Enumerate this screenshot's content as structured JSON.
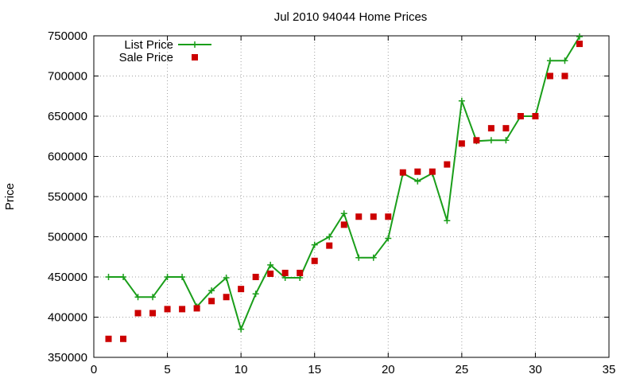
{
  "chart_data": {
    "type": "line",
    "title": "Jul 2010 94044 Home Prices",
    "xlabel": "",
    "ylabel": "Price",
    "xlim": [
      0,
      35
    ],
    "ylim": [
      350000,
      750000
    ],
    "x_ticks": [
      0,
      5,
      10,
      15,
      20,
      25,
      30,
      35
    ],
    "y_ticks": [
      350000,
      400000,
      450000,
      500000,
      550000,
      600000,
      650000,
      700000,
      750000
    ],
    "grid": true,
    "legend_position": "top-left",
    "series": [
      {
        "name": "List Price",
        "style": "line+cross",
        "color": "#1a9e1a",
        "points": [
          [
            1,
            450000
          ],
          [
            2,
            450000
          ],
          [
            3,
            425000
          ],
          [
            4,
            425000
          ],
          [
            5,
            450000
          ],
          [
            6,
            450000
          ],
          [
            7,
            413000
          ],
          [
            8,
            433000
          ],
          [
            9,
            449000
          ],
          [
            10,
            385000
          ],
          [
            11,
            429000
          ],
          [
            12,
            465000
          ],
          [
            13,
            449000
          ],
          [
            14,
            449000
          ],
          [
            15,
            490000
          ],
          [
            16,
            500000
          ],
          [
            17,
            529000
          ],
          [
            18,
            474000
          ],
          [
            19,
            474000
          ],
          [
            20,
            498000
          ],
          [
            21,
            579000
          ],
          [
            22,
            569000
          ],
          [
            23,
            579000
          ],
          [
            24,
            520000
          ],
          [
            25,
            669000
          ],
          [
            26,
            619000
          ],
          [
            27,
            620000
          ],
          [
            28,
            620000
          ],
          [
            29,
            650000
          ],
          [
            30,
            650000
          ],
          [
            31,
            719000
          ],
          [
            32,
            719000
          ],
          [
            33,
            749000
          ]
        ]
      },
      {
        "name": "Sale Price",
        "style": "square",
        "color": "#cc0000",
        "points": [
          [
            1,
            373000
          ],
          [
            2,
            373000
          ],
          [
            3,
            405000
          ],
          [
            4,
            405000
          ],
          [
            5,
            410000
          ],
          [
            6,
            410000
          ],
          [
            7,
            411000
          ],
          [
            8,
            420000
          ],
          [
            9,
            425000
          ],
          [
            10,
            435000
          ],
          [
            11,
            450000
          ],
          [
            12,
            454000
          ],
          [
            13,
            455000
          ],
          [
            14,
            455000
          ],
          [
            15,
            470000
          ],
          [
            16,
            489000
          ],
          [
            17,
            515000
          ],
          [
            18,
            525000
          ],
          [
            19,
            525000
          ],
          [
            20,
            525000
          ],
          [
            21,
            580000
          ],
          [
            22,
            581000
          ],
          [
            23,
            581000
          ],
          [
            24,
            590000
          ],
          [
            25,
            616000
          ],
          [
            26,
            620000
          ],
          [
            27,
            635000
          ],
          [
            28,
            635000
          ],
          [
            29,
            650000
          ],
          [
            30,
            650000
          ],
          [
            31,
            700000
          ],
          [
            32,
            700000
          ],
          [
            33,
            740000
          ]
        ]
      }
    ]
  }
}
